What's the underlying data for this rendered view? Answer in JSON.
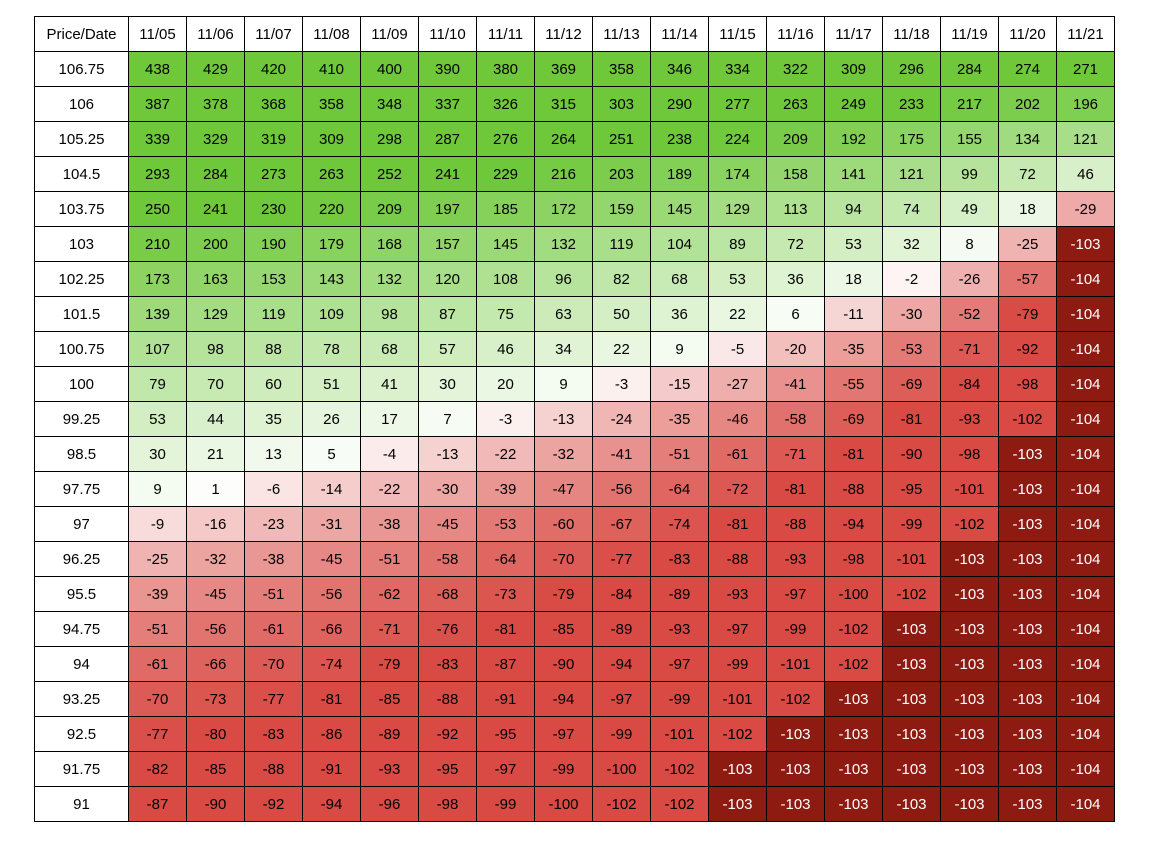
{
  "chart_data": {
    "type": "heatmap",
    "corner_label": "Price/Date",
    "dates": [
      "11/05",
      "11/06",
      "11/07",
      "11/08",
      "11/09",
      "11/10",
      "11/11",
      "11/12",
      "11/13",
      "11/14",
      "11/15",
      "11/16",
      "11/17",
      "11/18",
      "11/19",
      "11/20",
      "11/21"
    ],
    "prices": [
      "106.75",
      "106",
      "105.25",
      "104.5",
      "103.75",
      "103",
      "102.25",
      "101.5",
      "100.75",
      "100",
      "99.25",
      "98.5",
      "97.75",
      "97",
      "96.25",
      "95.5",
      "94.75",
      "94",
      "93.25",
      "92.5",
      "91.75",
      "91"
    ],
    "values": [
      [
        438,
        429,
        420,
        410,
        400,
        390,
        380,
        369,
        358,
        346,
        334,
        322,
        309,
        296,
        284,
        274,
        271
      ],
      [
        387,
        378,
        368,
        358,
        348,
        337,
        326,
        315,
        303,
        290,
        277,
        263,
        249,
        233,
        217,
        202,
        196
      ],
      [
        339,
        329,
        319,
        309,
        298,
        287,
        276,
        264,
        251,
        238,
        224,
        209,
        192,
        175,
        155,
        134,
        121
      ],
      [
        293,
        284,
        273,
        263,
        252,
        241,
        229,
        216,
        203,
        189,
        174,
        158,
        141,
        121,
        99,
        72,
        46
      ],
      [
        250,
        241,
        230,
        220,
        209,
        197,
        185,
        172,
        159,
        145,
        129,
        113,
        94,
        74,
        49,
        18,
        -29
      ],
      [
        210,
        200,
        190,
        179,
        168,
        157,
        145,
        132,
        119,
        104,
        89,
        72,
        53,
        32,
        8,
        -25,
        -103
      ],
      [
        173,
        163,
        153,
        143,
        132,
        120,
        108,
        96,
        82,
        68,
        53,
        36,
        18,
        -2,
        -26,
        -57,
        -104
      ],
      [
        139,
        129,
        119,
        109,
        98,
        87,
        75,
        63,
        50,
        36,
        22,
        6,
        -11,
        -30,
        -52,
        -79,
        -104
      ],
      [
        107,
        98,
        88,
        78,
        68,
        57,
        46,
        34,
        22,
        9,
        -5,
        -20,
        -35,
        -53,
        -71,
        -92,
        -104
      ],
      [
        79,
        70,
        60,
        51,
        41,
        30,
        20,
        9,
        -3,
        -15,
        -27,
        -41,
        -55,
        -69,
        -84,
        -98,
        -104
      ],
      [
        53,
        44,
        35,
        26,
        17,
        7,
        -3,
        -13,
        -24,
        -35,
        -46,
        -58,
        -69,
        -81,
        -93,
        -102,
        -104
      ],
      [
        30,
        21,
        13,
        5,
        -4,
        -13,
        -22,
        -32,
        -41,
        -51,
        -61,
        -71,
        -81,
        -90,
        -98,
        -103,
        -104
      ],
      [
        9,
        1,
        -6,
        -14,
        -22,
        -30,
        -39,
        -47,
        -56,
        -64,
        -72,
        -81,
        -88,
        -95,
        -101,
        -103,
        -104
      ],
      [
        -9,
        -16,
        -23,
        -31,
        -38,
        -45,
        -53,
        -60,
        -67,
        -74,
        -81,
        -88,
        -94,
        -99,
        -102,
        -103,
        -104
      ],
      [
        -25,
        -32,
        -38,
        -45,
        -51,
        -58,
        -64,
        -70,
        -77,
        -83,
        -88,
        -93,
        -98,
        -101,
        -103,
        -103,
        -104
      ],
      [
        -39,
        -45,
        -51,
        -56,
        -62,
        -68,
        -73,
        -79,
        -84,
        -89,
        -93,
        -97,
        -100,
        -102,
        -103,
        -103,
        -104
      ],
      [
        -51,
        -56,
        -61,
        -66,
        -71,
        -76,
        -81,
        -85,
        -89,
        -93,
        -97,
        -99,
        -102,
        -103,
        -103,
        -103,
        -104
      ],
      [
        -61,
        -66,
        -70,
        -74,
        -79,
        -83,
        -87,
        -90,
        -94,
        -97,
        -99,
        -101,
        -102,
        -103,
        -103,
        -103,
        -104
      ],
      [
        -70,
        -73,
        -77,
        -81,
        -85,
        -88,
        -91,
        -94,
        -97,
        -99,
        -101,
        -102,
        -103,
        -103,
        -103,
        -103,
        -104
      ],
      [
        -77,
        -80,
        -83,
        -86,
        -89,
        -92,
        -95,
        -97,
        -99,
        -101,
        -102,
        -103,
        -103,
        -103,
        -103,
        -103,
        -104
      ],
      [
        -82,
        -85,
        -88,
        -91,
        -93,
        -95,
        -97,
        -99,
        -100,
        -102,
        -103,
        -103,
        -103,
        -103,
        -103,
        -103,
        -104
      ],
      [
        -87,
        -90,
        -92,
        -94,
        -96,
        -98,
        -99,
        -100,
        -102,
        -102,
        -103,
        -103,
        -103,
        -103,
        -103,
        -103,
        -104
      ]
    ],
    "color_scale": {
      "positive_max": "#6ec83a",
      "zero": "#ffffff",
      "negative_mid": "#d94a44",
      "negative_max": "#8e1b12",
      "extreme_threshold": -103
    }
  }
}
